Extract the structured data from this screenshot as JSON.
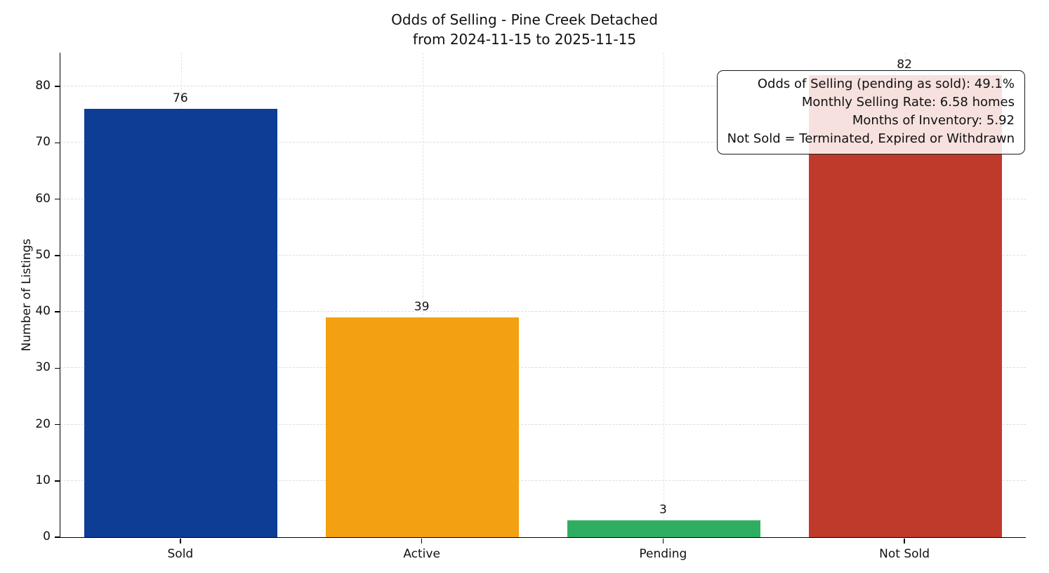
{
  "chart_data": {
    "type": "bar",
    "title": "Odds of Selling - Pine Creek Detached",
    "subtitle": "from 2024-11-15 to 2025-11-15",
    "ylabel": "Number of Listings",
    "categories": [
      "Sold",
      "Active",
      "Pending",
      "Not Sold"
    ],
    "values": [
      76,
      39,
      3,
      82
    ],
    "bar_colors": [
      "#0d3d94",
      "#f3a013",
      "#2fae61",
      "#c03a2b"
    ],
    "ylim": [
      0,
      86
    ],
    "yticks": [
      0,
      10,
      20,
      30,
      40,
      50,
      60,
      70,
      80
    ],
    "grid": "dashed",
    "legend": "none",
    "annotation": {
      "position": "top-right",
      "lines": [
        "Odds of Selling (pending as sold): 49.1%",
        "Monthly Selling Rate: 6.58 homes",
        "Months of Inventory: 5.92",
        "Not Sold = Terminated, Expired or Withdrawn"
      ]
    }
  }
}
